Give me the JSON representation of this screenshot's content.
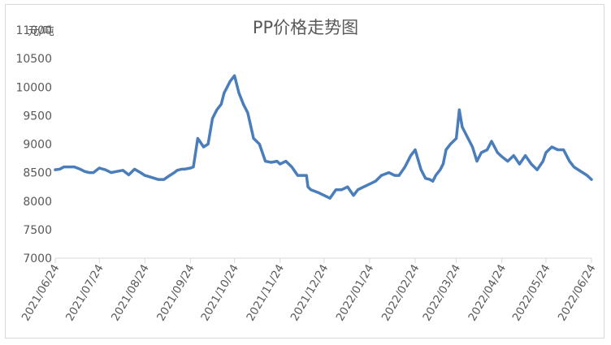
{
  "chart_data": {
    "type": "line",
    "title": "PP价格走势图",
    "unit_label": "元/吨",
    "xlabel": "",
    "ylabel": "",
    "ylim": [
      7000,
      11000
    ],
    "yticks": [
      7000,
      7500,
      8000,
      8500,
      9000,
      9500,
      10000,
      10500,
      11000
    ],
    "xticks": [
      "2021/06/24",
      "2021/07/24",
      "2021/08/24",
      "2021/09/24",
      "2021/10/24",
      "2021/11/24",
      "2021/12/24",
      "2022/01/24",
      "2022/02/24",
      "2022/03/24",
      "2022/04/24",
      "2022/05/24",
      "2022/06/24"
    ],
    "line_color": "#4a7ebb",
    "grid": false,
    "legend": "none",
    "series": [
      {
        "x": [
          "2021/06/24",
          "2021/06/27",
          "2021/06/30",
          "2021/07/03",
          "2021/07/07",
          "2021/07/11",
          "2021/07/14",
          "2021/07/17",
          "2021/07/20",
          "2021/07/24",
          "2021/07/28",
          "2021/08/01",
          "2021/08/05",
          "2021/08/09",
          "2021/08/13",
          "2021/08/17",
          "2021/08/21",
          "2021/08/24",
          "2021/08/28",
          "2021/09/02",
          "2021/09/06",
          "2021/09/10",
          "2021/09/13",
          "2021/09/14",
          "2021/09/15",
          "2021/09/18",
          "2021/09/20",
          "2021/09/24",
          "2021/09/26",
          "2021/09/29",
          "2021/10/03",
          "2021/10/06",
          "2021/10/09",
          "2021/10/12",
          "2021/10/15",
          "2021/10/17",
          "2021/10/19",
          "2021/10/21",
          "2021/10/24",
          "2021/10/27",
          "2021/10/30",
          "2021/11/02",
          "2021/11/06",
          "2021/11/10",
          "2021/11/14",
          "2021/11/18",
          "2021/11/22",
          "2021/11/24",
          "2021/11/28",
          "2021/12/02",
          "2021/12/06",
          "2021/12/10",
          "2021/12/12",
          "2021/12/13",
          "2021/12/15",
          "2021/12/20",
          "2021/12/24",
          "2021/12/28",
          "2022/01/01",
          "2022/01/05",
          "2022/01/09",
          "2022/01/13",
          "2022/01/16",
          "2022/01/20",
          "2022/01/24",
          "2022/01/28",
          "2022/02/01",
          "2022/02/06",
          "2022/02/10",
          "2022/02/13",
          "2022/02/17",
          "2022/02/21",
          "2022/02/24",
          "2022/02/28",
          "2022/03/03",
          "2022/03/06",
          "2022/03/08",
          "2022/03/09",
          "2022/03/10",
          "2022/03/13",
          "2022/03/15",
          "2022/03/17",
          "2022/03/20",
          "2022/03/24",
          "2022/03/26",
          "2022/03/28",
          "2022/04/01",
          "2022/04/04",
          "2022/04/07",
          "2022/04/10",
          "2022/04/14",
          "2022/04/17",
          "2022/04/21",
          "2022/04/24",
          "2022/04/28",
          "2022/05/02",
          "2022/05/06",
          "2022/05/10",
          "2022/05/14",
          "2022/05/18",
          "2022/05/22",
          "2022/05/24",
          "2022/05/28",
          "2022/06/01",
          "2022/06/05",
          "2022/06/09",
          "2022/06/12",
          "2022/06/15",
          "2022/06/18",
          "2022/06/21",
          "2022/06/24"
        ],
        "values": [
          8550,
          8560,
          8600,
          8600,
          8600,
          8560,
          8520,
          8500,
          8500,
          8580,
          8550,
          8500,
          8520,
          8540,
          8460,
          8560,
          8500,
          8450,
          8420,
          8380,
          8380,
          8450,
          8500,
          8520,
          8540,
          8560,
          8560,
          8580,
          8600,
          9100,
          8950,
          9000,
          9450,
          9600,
          9700,
          9900,
          10000,
          10100,
          10200,
          9900,
          9700,
          9550,
          9100,
          9000,
          8700,
          8680,
          8700,
          8650,
          8700,
          8600,
          8450,
          8450,
          8450,
          8250,
          8200,
          8150,
          8100,
          8050,
          8200,
          8200,
          8250,
          8100,
          8200,
          8250,
          8300,
          8350,
          8450,
          8500,
          8450,
          8450,
          8600,
          8800,
          8900,
          8550,
          8400,
          8380,
          8350,
          8400,
          8450,
          8550,
          8650,
          8900,
          9000,
          9100,
          9600,
          9300,
          9100,
          8950,
          8700,
          8850,
          8900,
          9050,
          8850,
          8780,
          8700,
          8800,
          8650,
          8800,
          8650,
          8550,
          8700,
          8850,
          8950,
          8900,
          8900,
          8700,
          8600,
          8550,
          8500,
          8450,
          8380
        ]
      }
    ]
  }
}
